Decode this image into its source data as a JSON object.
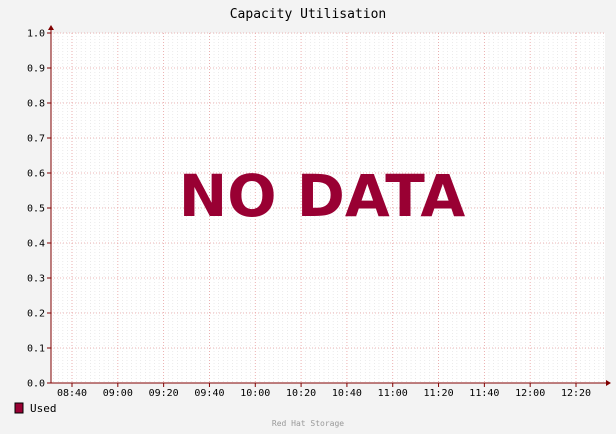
{
  "chart_data": {
    "type": "line",
    "title": "Capacity Utilisation",
    "xlabel": "",
    "ylabel": "",
    "ylim": [
      0,
      1
    ],
    "y_ticks": [
      "1.0",
      "0.9",
      "0.8",
      "0.7",
      "0.6",
      "0.5",
      "0.4",
      "0.3",
      "0.2",
      "0.1",
      "0.0"
    ],
    "x_ticks": [
      "08:40",
      "09:00",
      "09:20",
      "09:40",
      "10:00",
      "10:20",
      "10:40",
      "11:00",
      "11:20",
      "11:40",
      "12:00",
      "12:20"
    ],
    "series": [
      {
        "name": "Used",
        "values": []
      }
    ],
    "legend_placement": "bottom-left",
    "grid": true,
    "no_data_text": "NO DATA",
    "footer": "Red Hat Storage"
  },
  "colors": {
    "background": "#f3f3f3",
    "plot_background": "#ffffff",
    "accent": "#990033",
    "major_grid": "#e8a0a0",
    "minor_grid": "#dddddd",
    "axis": "#800000"
  }
}
